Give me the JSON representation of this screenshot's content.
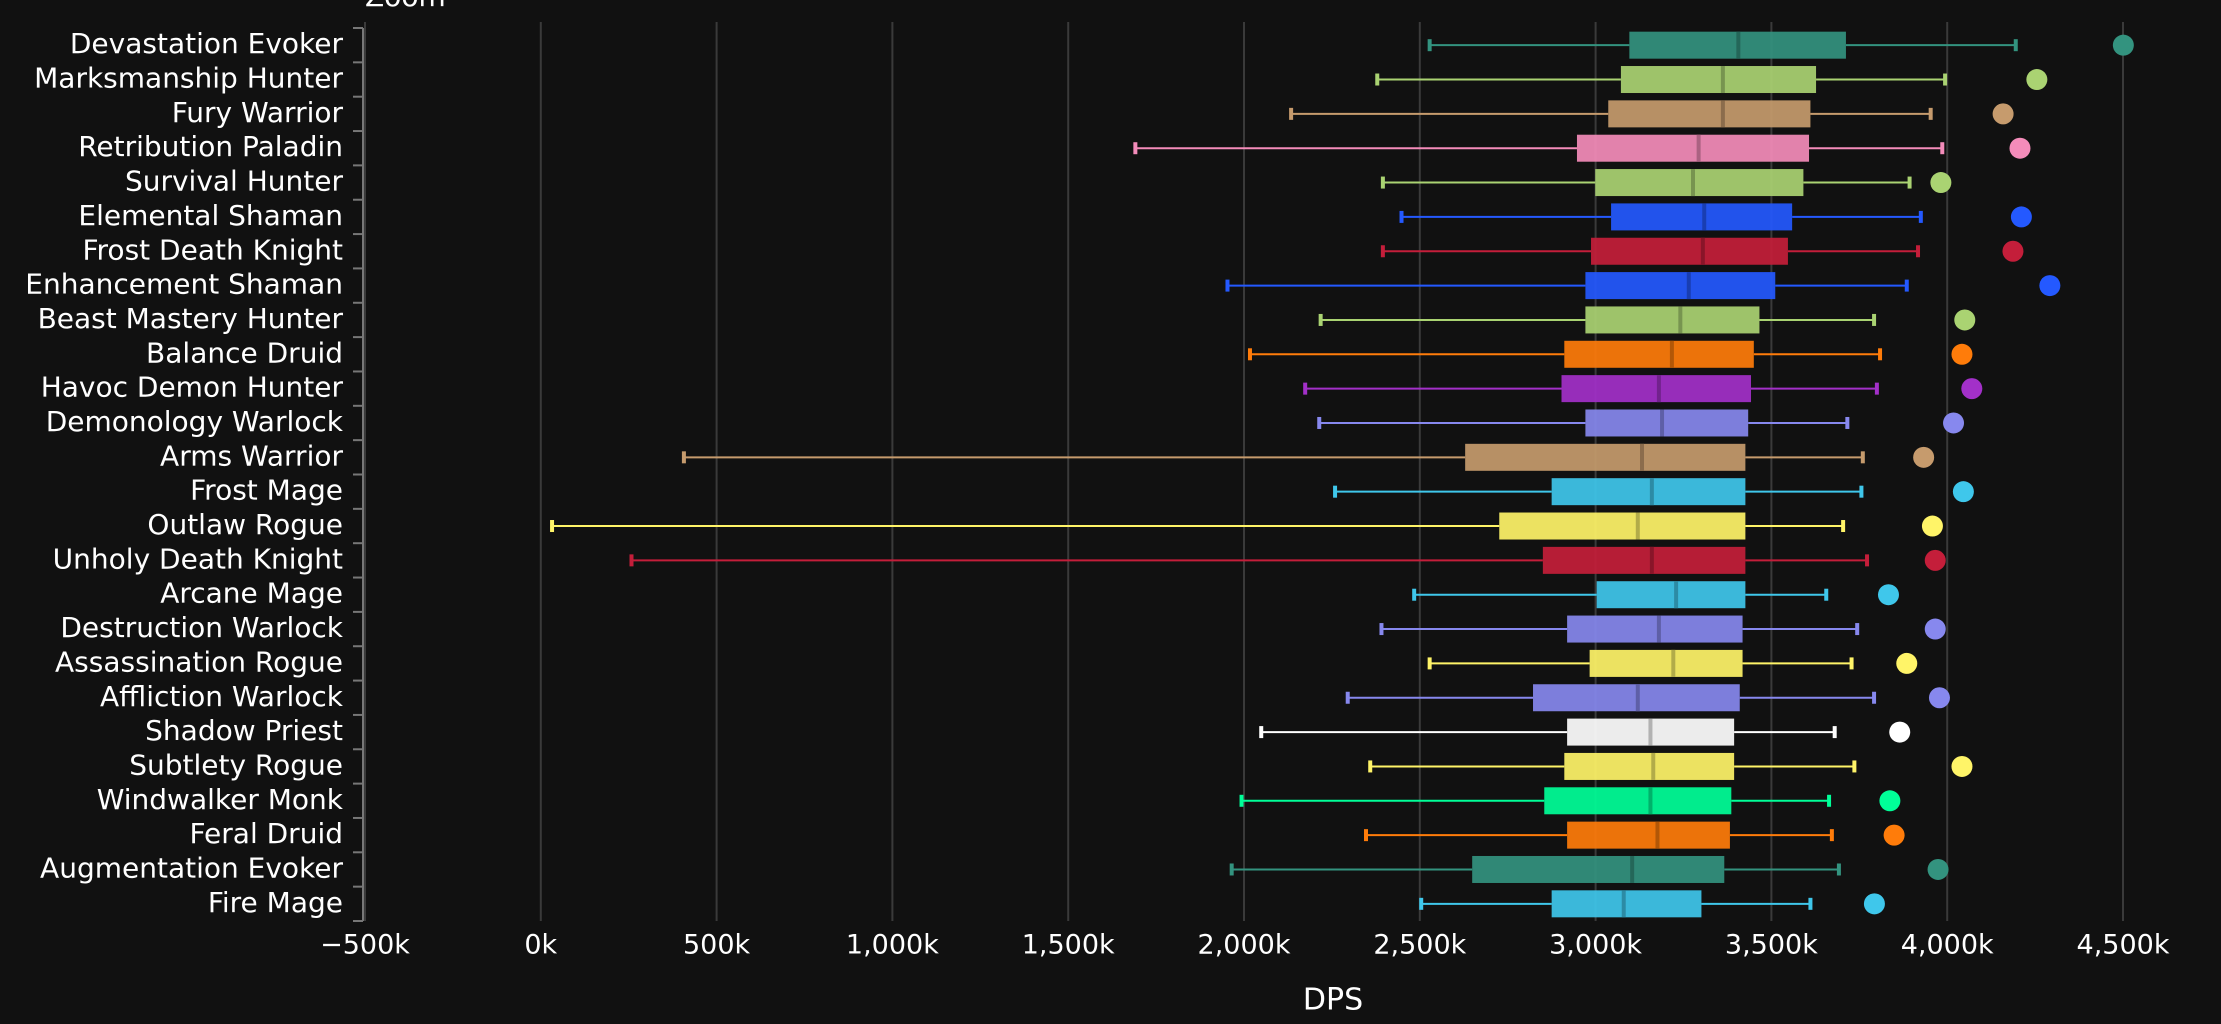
{
  "chart_data": {
    "type": "boxplot",
    "zoom_label": "Zoom",
    "x_label": "DPS",
    "categories": [
      "Devastation Evoker",
      "Marksmanship Hunter",
      "Fury Warrior",
      "Retribution Paladin",
      "Survival Hunter",
      "Elemental Shaman",
      "Frost Death Knight",
      "Enhancement Shaman",
      "Beast Mastery Hunter",
      "Balance Druid",
      "Havoc Demon Hunter",
      "Demonology Warlock",
      "Arms Warrior",
      "Frost Mage",
      "Outlaw Rogue",
      "Unholy Death Knight",
      "Arcane Mage",
      "Destruction Warlock",
      "Assassination Rogue",
      "Affliction Warlock",
      "Shadow Priest",
      "Subtlety Rogue",
      "Windwalker Monk",
      "Feral Druid",
      "Augmentation Evoker",
      "Fire Mage"
    ],
    "colors": [
      "#33937f",
      "#aad372",
      "#c69b6d",
      "#f48cba",
      "#aad372",
      "#2459ff",
      "#c41e3a",
      "#2459ff",
      "#aad372",
      "#ff7c0a",
      "#a330c9",
      "#8788ee",
      "#c69b6d",
      "#3fc7eb",
      "#fff468",
      "#c41e3a",
      "#3fc7eb",
      "#8788ee",
      "#fff468",
      "#8788ee",
      "#ffffff",
      "#fff468",
      "#00ff98",
      "#ff7c0a",
      "#33937f",
      "#3fc7eb"
    ],
    "whisker_low": [
      2528000,
      2379000,
      2134000,
      1691000,
      2395000,
      2448000,
      2395000,
      1953000,
      2218000,
      2017000,
      2174000,
      2214000,
      407000,
      2259000,
      32000,
      258000,
      2484000,
      2391000,
      2528000,
      2295000,
      2049000,
      2359000,
      1993000,
      2347000,
      1965000,
      2504000
    ],
    "q1": [
      3096000,
      3072000,
      3036000,
      2947000,
      2999000,
      3044000,
      2987000,
      2971000,
      2971000,
      2911000,
      2903000,
      2971000,
      2629000,
      2875000,
      2726000,
      2850000,
      3003000,
      2919000,
      2983000,
      2822000,
      2919000,
      2911000,
      2854000,
      2919000,
      2649000,
      2875000
    ],
    "median": [
      3406000,
      3362000,
      3362000,
      3293000,
      3277000,
      3309000,
      3305000,
      3265000,
      3241000,
      3217000,
      3180000,
      3189000,
      3132000,
      3160000,
      3120000,
      3160000,
      3229000,
      3180000,
      3221000,
      3120000,
      3156000,
      3164000,
      3156000,
      3176000,
      3104000,
      3080000
    ],
    "q3": [
      3712000,
      3627000,
      3611000,
      3607000,
      3591000,
      3559000,
      3547000,
      3511000,
      3466000,
      3450000,
      3442000,
      3434000,
      3426000,
      3426000,
      3426000,
      3426000,
      3426000,
      3418000,
      3418000,
      3410000,
      3394000,
      3394000,
      3386000,
      3382000,
      3366000,
      3301000
    ],
    "whisker_high": [
      4195000,
      3994000,
      3953000,
      3986000,
      3893000,
      3925000,
      3917000,
      3885000,
      3792000,
      3809000,
      3800000,
      3716000,
      3760000,
      3756000,
      3704000,
      3772000,
      3656000,
      3744000,
      3728000,
      3792000,
      3680000,
      3736000,
      3664000,
      3672000,
      3692000,
      3611000
    ],
    "points": [
      4501000,
      4255000,
      4159000,
      4207000,
      3982000,
      4211000,
      4187000,
      4292000,
      4050000,
      4042000,
      4070000,
      4018000,
      3933000,
      4046000,
      3958000,
      3966000,
      3833000,
      3966000,
      3885000,
      3978000,
      3865000,
      4042000,
      3837000,
      3849000,
      3974000,
      3793000
    ],
    "xlim": [
      -500000,
      4500000
    ],
    "xticks": [
      {
        "value": -500000,
        "label": "−500k"
      },
      {
        "value": 0,
        "label": "0k"
      },
      {
        "value": 500000,
        "label": "500k"
      },
      {
        "value": 1000000,
        "label": "1,000k"
      },
      {
        "value": 1500000,
        "label": "1,500k"
      },
      {
        "value": 2000000,
        "label": "2,000k"
      },
      {
        "value": 2500000,
        "label": "2,500k"
      },
      {
        "value": 3000000,
        "label": "3,000k"
      },
      {
        "value": 3500000,
        "label": "3,500k"
      },
      {
        "value": 4000000,
        "label": "4,000k"
      },
      {
        "value": 4500000,
        "label": "4,500k"
      }
    ],
    "grid": true
  }
}
